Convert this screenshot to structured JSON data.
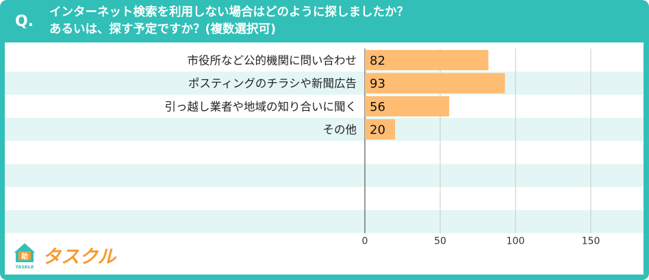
{
  "header": {
    "q_label": "Q.",
    "title_line1": "インターネット検索を利用しない場合はどのように探しましたか？",
    "title_line2": "あるいは、探す予定ですか？(複数選択可)"
  },
  "logo": {
    "brand_text": "タスクル",
    "sub_text": "TASKLE",
    "badge_text": "助",
    "icon": "house-icon"
  },
  "colors": {
    "frame": "#31bfb7",
    "bar": "#ffbd73",
    "row_stripe": "#e3f6f5",
    "logo": "#f79a2e"
  },
  "chart_data": {
    "type": "bar",
    "orientation": "horizontal",
    "categories": [
      "市役所など公的機関に問い合わせ",
      "ポスティングのチラシや新聞広告",
      "引っ越し業者や地域の知り合いに聞く",
      "その他"
    ],
    "values": [
      82,
      93,
      56,
      20
    ],
    "empty_rows": 4,
    "xlim": [
      0,
      185
    ],
    "xticks": [
      0,
      50,
      100,
      150
    ],
    "grid": true
  }
}
